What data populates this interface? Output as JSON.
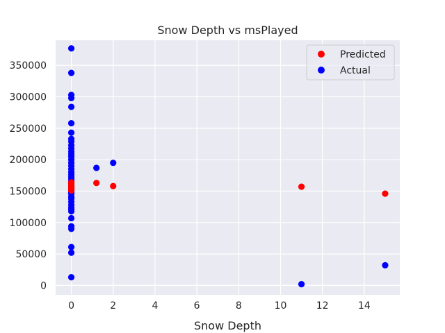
{
  "chart_data": {
    "type": "scatter",
    "title": "Snow Depth vs msPlayed",
    "xlabel": "Snow Depth",
    "ylabel": "",
    "xlim": [
      -0.75,
      15.7
    ],
    "ylim": [
      -15000,
      390000
    ],
    "xticks": [
      0,
      2,
      4,
      6,
      8,
      10,
      12,
      14
    ],
    "yticks": [
      0,
      50000,
      100000,
      150000,
      200000,
      250000,
      300000,
      350000
    ],
    "grid": true,
    "legend_position": "top-right",
    "background": "#eaeaf2",
    "series": [
      {
        "name": "Predicted",
        "color": "#ff0000",
        "x": [
          0,
          0,
          0,
          0,
          0,
          0,
          0,
          0,
          0,
          0,
          1.2,
          2,
          11,
          15
        ],
        "y": [
          151000,
          152000,
          154000,
          155000,
          156000,
          157000,
          158000,
          160000,
          162000,
          164000,
          163000,
          158000,
          157000,
          146000
        ]
      },
      {
        "name": "Actual",
        "color": "#0000ff",
        "x": [
          0,
          0,
          0,
          0,
          0,
          0,
          0,
          0,
          0,
          0,
          0,
          0,
          0,
          0,
          0,
          0,
          0,
          0,
          0,
          0,
          0,
          0,
          0,
          0,
          0,
          0,
          0,
          0,
          0,
          0,
          0,
          0,
          0,
          0,
          0,
          0,
          0,
          0,
          0,
          0,
          0,
          1.2,
          2,
          11,
          15
        ],
        "y": [
          377000,
          338000,
          303000,
          298000,
          284000,
          258000,
          243000,
          233000,
          229000,
          223000,
          218000,
          213000,
          209000,
          205000,
          200000,
          195000,
          190000,
          185000,
          180000,
          176000,
          172000,
          168000,
          165000,
          161000,
          157000,
          153000,
          148000,
          146000,
          138000,
          133000,
          128000,
          124000,
          121000,
          118000,
          107000,
          94000,
          90000,
          61000,
          52000,
          13000,
          141000,
          187000,
          195000,
          2000,
          32000
        ]
      }
    ]
  }
}
